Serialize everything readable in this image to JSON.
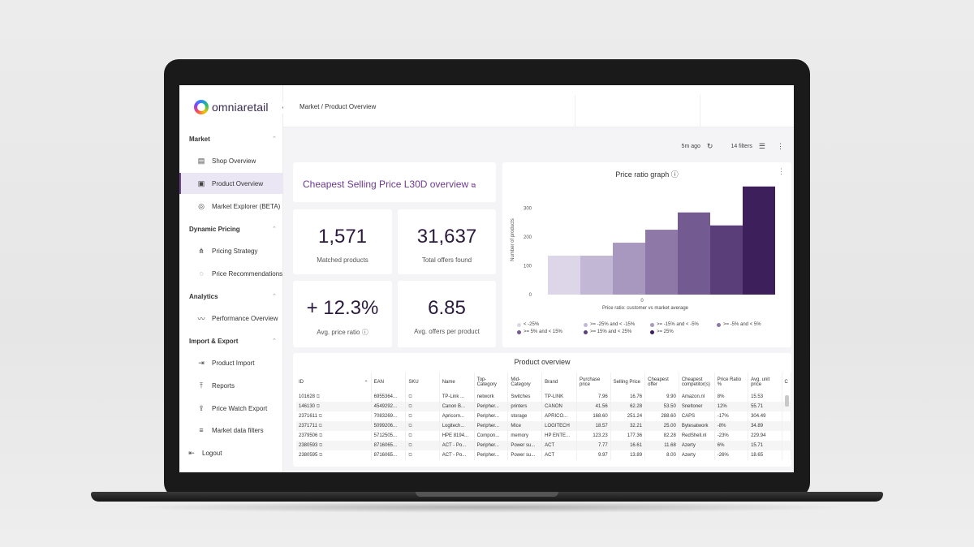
{
  "brand": {
    "name": "omniaretail"
  },
  "breadcrumb": "Market / Product Overview",
  "sidebar": {
    "sections": [
      {
        "title": "Market",
        "items": [
          {
            "label": "Shop Overview",
            "icon": "store-icon"
          },
          {
            "label": "Product Overview",
            "icon": "product-icon",
            "active": true
          },
          {
            "label": "Market Explorer (BETA)",
            "icon": "compass-icon"
          }
        ]
      },
      {
        "title": "Dynamic Pricing",
        "items": [
          {
            "label": "Pricing Strategy",
            "icon": "strategy-icon"
          },
          {
            "label": "Price Recommendations",
            "icon": "recommendation-icon"
          }
        ]
      },
      {
        "title": "Analytics",
        "items": [
          {
            "label": "Performance Overview",
            "icon": "chart-icon"
          }
        ]
      },
      {
        "title": "Import & Export",
        "items": [
          {
            "label": "Product Import",
            "icon": "import-icon"
          },
          {
            "label": "Reports",
            "icon": "upload-icon"
          },
          {
            "label": "Price Watch Export",
            "icon": "export-icon"
          },
          {
            "label": "Market data filters",
            "icon": "filter-icon"
          }
        ]
      }
    ],
    "logout": "Logout"
  },
  "toolbar": {
    "updated": "5m ago",
    "filters": "14 filters"
  },
  "cheapest_title": "Cheapest Selling Price L30D overview",
  "kpis": [
    {
      "value": "1,571",
      "label": "Matched products"
    },
    {
      "value": "31,637",
      "label": "Total offers found"
    },
    {
      "value": "+ 12.3%",
      "label": "Avg. price ratio"
    },
    {
      "value": "6.85",
      "label": "Avg. offers per product"
    }
  ],
  "chart_data": {
    "type": "bar",
    "title": "Price ratio graph",
    "xlabel": "Price ratio: customer vs market average",
    "ylabel": "Number of products",
    "x_tick": "0",
    "yticks": [
      0,
      100,
      200,
      300
    ],
    "ylim": [
      0,
      380
    ],
    "categories": [
      "< -25%",
      ">= -25% and < -15%",
      ">= -15% and < -5%",
      ">= -5% and < 5%",
      ">= 5% and < 15%",
      ">= 15% and < 25%",
      ">= 25%"
    ],
    "values": [
      135,
      135,
      180,
      225,
      285,
      240,
      375
    ],
    "colors": [
      "#dcd6e8",
      "#c2b7d5",
      "#a897be",
      "#8d78a8",
      "#735a91",
      "#5a3e7a",
      "#3d1f5c"
    ],
    "legend_placement": "bottom"
  },
  "table": {
    "title": "Product overview",
    "columns": [
      "ID",
      "EAN",
      "SKU",
      "Name",
      "Top-Category",
      "Mid-Category",
      "Brand",
      "Purchase price",
      "Selling Price",
      "Cheapest offer",
      "Cheapest competitor(s)",
      "Price Ratio %",
      "Avg. unit price",
      "C"
    ],
    "rows": [
      [
        "101628",
        "6955364...",
        "",
        "TP-Link ...",
        "network",
        "Switches",
        "TP-LINK",
        "7.96",
        "16.76",
        "9.90",
        "Amazon.nl",
        "8%",
        "15.53"
      ],
      [
        "146130",
        "4549292...",
        "",
        "Canon B...",
        "Peripher...",
        "printers",
        "CANON",
        "41.56",
        "62.28",
        "53.50",
        "Sneltoner",
        "12%",
        "55.71"
      ],
      [
        "2371611",
        "7083269...",
        "",
        "Apricorn...",
        "Peripher...",
        "storage",
        "APRICO...",
        "168.60",
        "251.24",
        "288.60",
        "CAPS",
        "-17%",
        "304.49"
      ],
      [
        "2371711",
        "5099206...",
        "",
        "Logitech...",
        "Peripher...",
        "Mice",
        "LOGITECH",
        "18.57",
        "32.21",
        "25.00",
        "Bytesatwork",
        "-8%",
        "34.89"
      ],
      [
        "2379506",
        "5712505...",
        "",
        "HPE 8194...",
        "Compon...",
        "memory",
        "HP ENTE...",
        "123.23",
        "177.36",
        "82.28",
        "RedShell.nl",
        "-23%",
        "229.94"
      ],
      [
        "2380593",
        "8716065...",
        "",
        "ACT - Po...",
        "Peripher...",
        "Power su...",
        "ACT",
        "7.77",
        "16.61",
        "11.68",
        "Azerty",
        "6%",
        "15.71"
      ],
      [
        "2380595",
        "8716065...",
        "",
        "ACT - Po...",
        "Peripher...",
        "Power su...",
        "ACT",
        "9.97",
        "13.89",
        "8.00",
        "Azerty",
        "-26%",
        "18.65"
      ]
    ]
  }
}
